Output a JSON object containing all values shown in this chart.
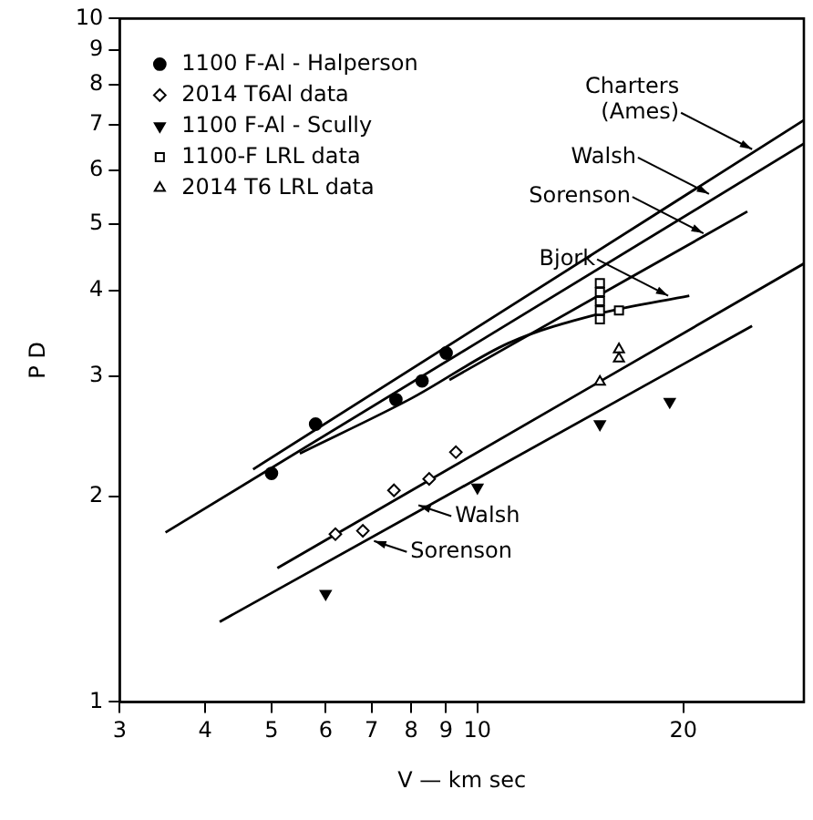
{
  "chart_data": {
    "type": "scatter",
    "xlabel": "V — km sec",
    "ylabel": "P D",
    "log": "xy",
    "xlim": [
      3,
      30
    ],
    "ylim": [
      1,
      10
    ],
    "xticks": [
      3,
      4,
      5,
      6,
      7,
      8,
      9,
      10,
      20
    ],
    "yticks": [
      1,
      2,
      3,
      4,
      5,
      6,
      7,
      8,
      9,
      10
    ],
    "legend": "top left",
    "series": [
      {
        "name": "1100 F-Al - Halperson",
        "type": "scatter",
        "marker": "circle",
        "color": "#000000",
        "x": [
          5.0,
          5.8,
          7.6,
          8.3,
          9.0
        ],
        "values": [
          2.16,
          2.55,
          2.77,
          2.95,
          3.24
        ]
      },
      {
        "name": "2014 T6Al data",
        "type": "scatter",
        "marker": "diamond",
        "color": "#000000",
        "x": [
          6.2,
          6.8,
          7.55,
          8.5,
          9.3
        ],
        "values": [
          1.76,
          1.78,
          2.04,
          2.12,
          2.32
        ]
      },
      {
        "name": "1100 F-Al - Scully",
        "type": "scatter",
        "marker": "triangle_down",
        "color": "#000000",
        "x": [
          6.0,
          10.0,
          15.1,
          19.1
        ],
        "values": [
          1.44,
          2.06,
          2.55,
          2.75
        ]
      },
      {
        "name": "1100-F LRL data",
        "type": "scatter",
        "marker": "square",
        "color": "#000000",
        "x": [
          15.1,
          15.1,
          15.1,
          15.1,
          15.1,
          16.1
        ],
        "values": [
          4.1,
          3.98,
          3.86,
          3.74,
          3.63,
          3.74
        ]
      },
      {
        "name": "2014 T6 LRL data",
        "type": "scatter",
        "marker": "triangle",
        "color": "#000000",
        "x": [
          15.1,
          16.1,
          16.1
        ],
        "values": [
          2.94,
          3.28,
          3.18
        ]
      },
      {
        "type": "line",
        "color": "#000000",
        "x": [
          4.7,
          30
        ],
        "values": [
          2.19,
          7.1
        ]
      },
      {
        "type": "line",
        "color": "#000000",
        "x": [
          3.5,
          30
        ],
        "values": [
          1.77,
          6.56
        ]
      },
      {
        "type": "line",
        "color": "#000000",
        "x": [
          9.1,
          24.8
        ],
        "values": [
          2.96,
          5.22
        ]
      },
      {
        "type": "line",
        "color": "#000000",
        "x": [
          5.5,
          8,
          11.1,
          15.1,
          20.4
        ],
        "values": [
          2.31,
          2.78,
          3.35,
          3.7,
          3.93
        ]
      },
      {
        "type": "line",
        "color": "#000000",
        "x": [
          5.1,
          30
        ],
        "values": [
          1.57,
          4.38
        ]
      },
      {
        "type": "line",
        "color": "#000000",
        "x": [
          4.2,
          25.2
        ],
        "values": [
          1.31,
          3.55
        ]
      }
    ],
    "annotations": [
      {
        "text": "Charters (Ames)",
        "x": 25.2,
        "y": 6.44
      },
      {
        "text": "Walsh",
        "x": 21.8,
        "y": 5.54
      },
      {
        "text": "Sorenson",
        "x": 21.4,
        "y": 4.85
      },
      {
        "text": "Bjork",
        "x": 19.0,
        "y": 3.93
      },
      {
        "text": "Walsh",
        "x": 8.2,
        "y": 1.94
      },
      {
        "text": "Sorenson",
        "x": 7.06,
        "y": 1.72
      }
    ]
  }
}
